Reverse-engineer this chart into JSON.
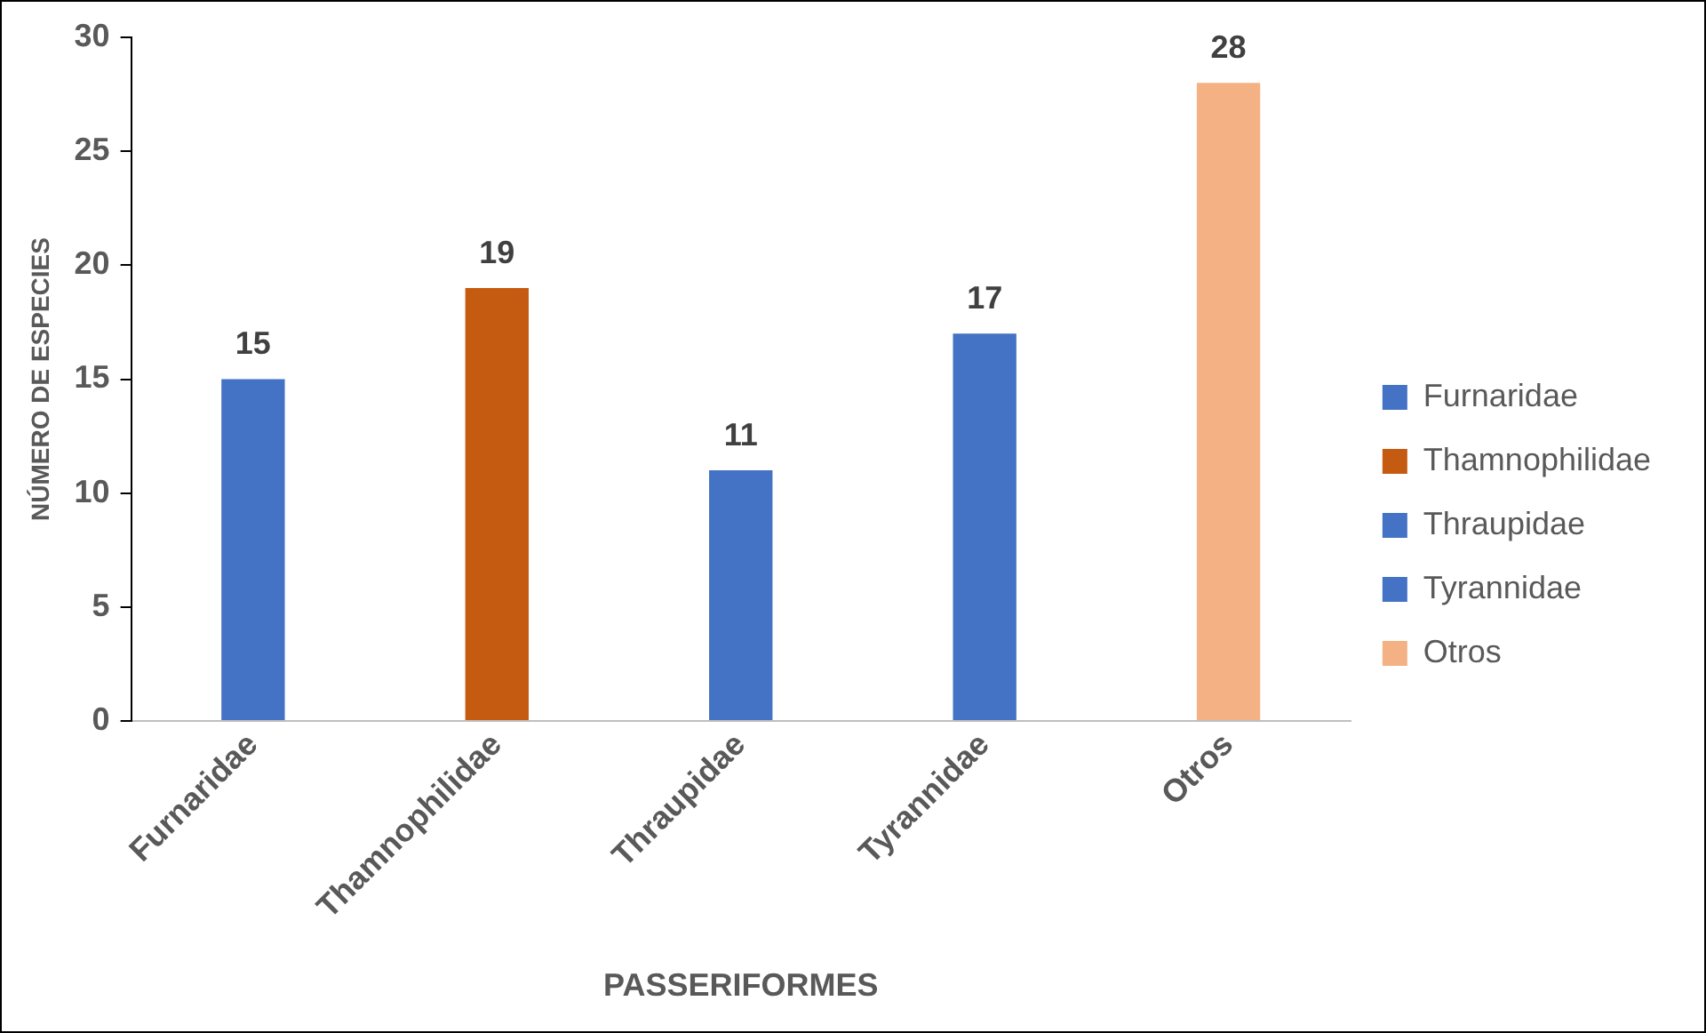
{
  "chart_data": {
    "type": "bar",
    "xlabel": "PASSERIFORMES",
    "ylabel": "NÚMERO DE ESPECIES",
    "categories": [
      "Furnaridae",
      "Thamnophilidae",
      "Thraupidae",
      "Tyrannidae",
      "Otros"
    ],
    "series": [
      {
        "name": "Furnaridae",
        "color": "#4472c4",
        "values": [
          15,
          null,
          null,
          null,
          null
        ]
      },
      {
        "name": "Thamnophilidae",
        "color": "#c55a11",
        "values": [
          null,
          19,
          null,
          null,
          null
        ]
      },
      {
        "name": "Thraupidae",
        "color": "#4472c4",
        "values": [
          null,
          null,
          11,
          null,
          null
        ]
      },
      {
        "name": "Tyrannidae",
        "color": "#4472c4",
        "values": [
          null,
          null,
          null,
          17,
          null
        ]
      },
      {
        "name": "Otros",
        "color": "#f4b183",
        "values": [
          null,
          null,
          null,
          null,
          28
        ]
      }
    ],
    "ylim": [
      0,
      30
    ],
    "yticks": [
      0,
      5,
      10,
      15,
      20,
      25,
      30
    ],
    "grid": false,
    "legend": "right",
    "data_labels": true
  }
}
